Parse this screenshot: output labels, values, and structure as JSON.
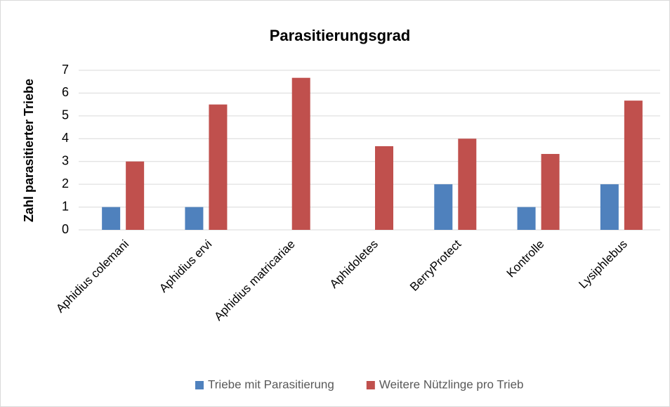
{
  "chart_data": {
    "type": "bar",
    "title": "Parasitierungsgrad",
    "y_label": "Zahl parasitierter Triebe",
    "categories": [
      "Aphidius colemani",
      "Aphidius ervi",
      "Aphidius matricariae",
      "Aphidoletes",
      "BerryProtect",
      "Kontrolle",
      "Lysiphlebus"
    ],
    "series": [
      {
        "name": "Triebe mit Parasitierung",
        "color": "#4f81bd",
        "values": [
          1,
          1,
          0,
          0,
          2,
          1,
          2
        ]
      },
      {
        "name": "Weitere Nützlinge pro Trieb",
        "color": "#c0504d",
        "values": [
          3,
          5.5,
          6.67,
          3.67,
          4,
          3.33,
          5.67
        ]
      }
    ],
    "ylim": [
      0,
      7
    ],
    "yticks": [
      0,
      1,
      2,
      3,
      4,
      5,
      6,
      7
    ],
    "grid": true,
    "legend": "bottom"
  }
}
